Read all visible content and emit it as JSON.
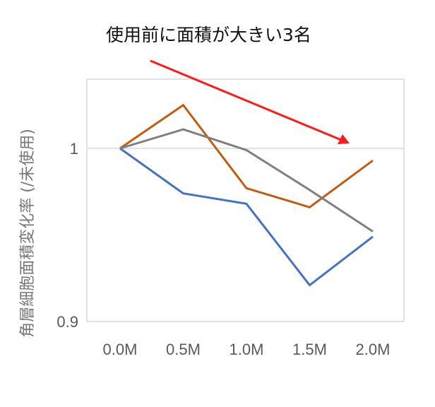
{
  "chart_data": {
    "type": "line",
    "title": "使用前に面積が大きい3名",
    "xlabel": "",
    "ylabel": "角層細胞面積変化率 (/未使用)",
    "categories": [
      "0.0M",
      "0.5M",
      "1.0M",
      "1.5M",
      "2.0M"
    ],
    "ylim": [
      0.9,
      1.04
    ],
    "yticks": [
      0.9,
      1
    ],
    "ytick_labels": [
      "0.9",
      "1"
    ],
    "grid": false,
    "series": [
      {
        "color": "#4472C4",
        "values": [
          1.0,
          0.974,
          0.968,
          0.921,
          0.949
        ]
      },
      {
        "color": "#C55A11",
        "values": [
          1.0,
          1.025,
          0.977,
          0.966,
          0.993
        ]
      },
      {
        "color": "#808080",
        "values": [
          1.0,
          1.011,
          0.999,
          0.976,
          0.952
        ]
      }
    ],
    "annotation": {
      "type": "arrow",
      "color": "#FF1A1A",
      "meaning": "downward trend"
    }
  }
}
